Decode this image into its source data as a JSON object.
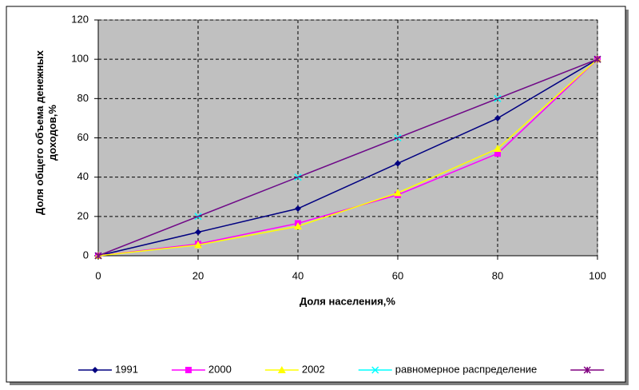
{
  "chart_data": {
    "type": "line",
    "x_label": "Доля населения,%",
    "y_label": "Доля общего объема денежных доходов,%",
    "x": [
      0,
      20,
      40,
      60,
      80,
      100
    ],
    "series": [
      {
        "name": "1991",
        "color": "#000080",
        "marker": "diamond",
        "values": [
          0,
          12,
          24,
          47,
          70,
          100
        ]
      },
      {
        "name": "2000",
        "color": "#ff00ff",
        "marker": "square",
        "values": [
          0,
          6,
          16.5,
          31,
          52,
          100
        ]
      },
      {
        "name": "2002",
        "color": "#ffff00",
        "marker": "triangle",
        "values": [
          0,
          5.5,
          15,
          32,
          54.5,
          100
        ]
      },
      {
        "name": "равномерное распределение",
        "color": "#00ffff",
        "marker": "x",
        "values": [
          0,
          20,
          40,
          60,
          80,
          100
        ]
      },
      {
        "color": "#800080",
        "marker": "star",
        "x": [
          0,
          100
        ],
        "values": [
          0,
          100
        ]
      }
    ],
    "xlim": [
      0,
      100
    ],
    "xticks": [
      0,
      20,
      40,
      60,
      80,
      100
    ],
    "ylim": [
      0,
      120
    ],
    "yticks": [
      0,
      20,
      40,
      60,
      80,
      100,
      120
    ],
    "grid": true,
    "plot_background": "#c0c0c0",
    "legend": "bottom"
  }
}
